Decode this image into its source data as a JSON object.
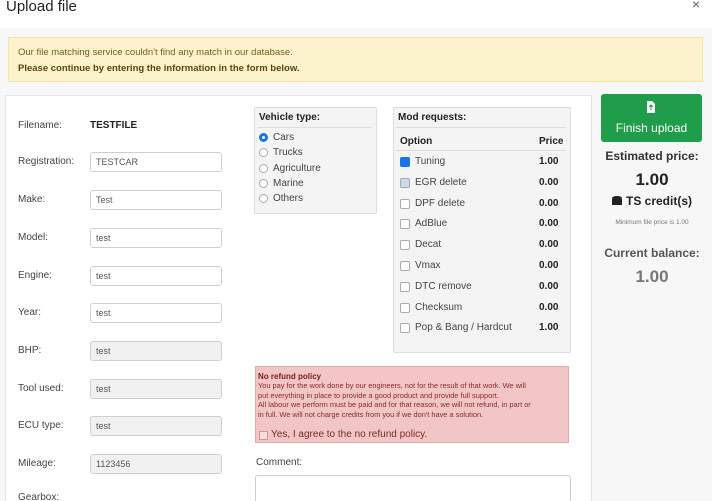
{
  "header": {
    "title": "Upload file",
    "close": "×"
  },
  "alert": {
    "line1": "Our file matching service couldn't find any match in our database.",
    "line2": "Please continue by entering the information in the form below."
  },
  "form": {
    "fields": [
      {
        "label": "Filename:",
        "value": "TESTFILE"
      },
      {
        "label": "Registration:",
        "value": "TESTCAR"
      },
      {
        "label": "Make:",
        "value": "Test"
      },
      {
        "label": "Model:",
        "value": "test"
      },
      {
        "label": "Engine:",
        "value": "test"
      },
      {
        "label": "Year:",
        "value": "test"
      },
      {
        "label": "BHP:",
        "value": "test"
      },
      {
        "label": "Tool used:",
        "value": "test"
      },
      {
        "label": "ECU type:",
        "value": "test"
      },
      {
        "label": "Mileage:",
        "value": "1123456"
      },
      {
        "label": "Gearbox:"
      }
    ]
  },
  "vehicle_type": {
    "title": "Vehicle type:",
    "options": [
      "Cars",
      "Trucks",
      "Agriculture",
      "Marine",
      "Others"
    ],
    "selected": 0
  },
  "mod_requests": {
    "title": "Mod requests:",
    "columns": [
      "Option",
      "Price"
    ],
    "rows": [
      {
        "option": "Tuning",
        "price": "1.00",
        "checked": true
      },
      {
        "option": "EGR delete",
        "price": "0.00",
        "checked": false
      },
      {
        "option": "DPF delete",
        "price": "0.00",
        "checked": false
      },
      {
        "option": "AdBlue",
        "price": "0.00",
        "checked": false
      },
      {
        "option": "Decat",
        "price": "0.00",
        "checked": false
      },
      {
        "option": "Vmax",
        "price": "0.00",
        "checked": false
      },
      {
        "option": "DTC remove",
        "price": "0.00",
        "checked": false
      },
      {
        "option": "Checksum",
        "price": "0.00",
        "checked": false
      },
      {
        "option": "Pop & Bang / Hardcut",
        "price": "1.00",
        "checked": false
      }
    ]
  },
  "refund": {
    "title": "No refund policy",
    "lines": [
      "You pay for the work done by our engineers, not for the result of that work. We will",
      "put everything in place to provide a good product and provide full support.",
      "All labour we perform must be paid and for that reason, we will not refund, in part or",
      "in full. We will not charge credits from you if we don't have a solution."
    ],
    "agree": "Yes, I agree to the no refund policy."
  },
  "comment": {
    "label": "Comment:"
  },
  "summary": {
    "button": "Finish upload",
    "estimated_label": "Estimated price:",
    "estimated_value": "1.00",
    "credits": "TS credit(s)",
    "minimum": "Minimum file price is 1.00",
    "balance_label": "Current balance:",
    "balance_value": "1.00"
  }
}
